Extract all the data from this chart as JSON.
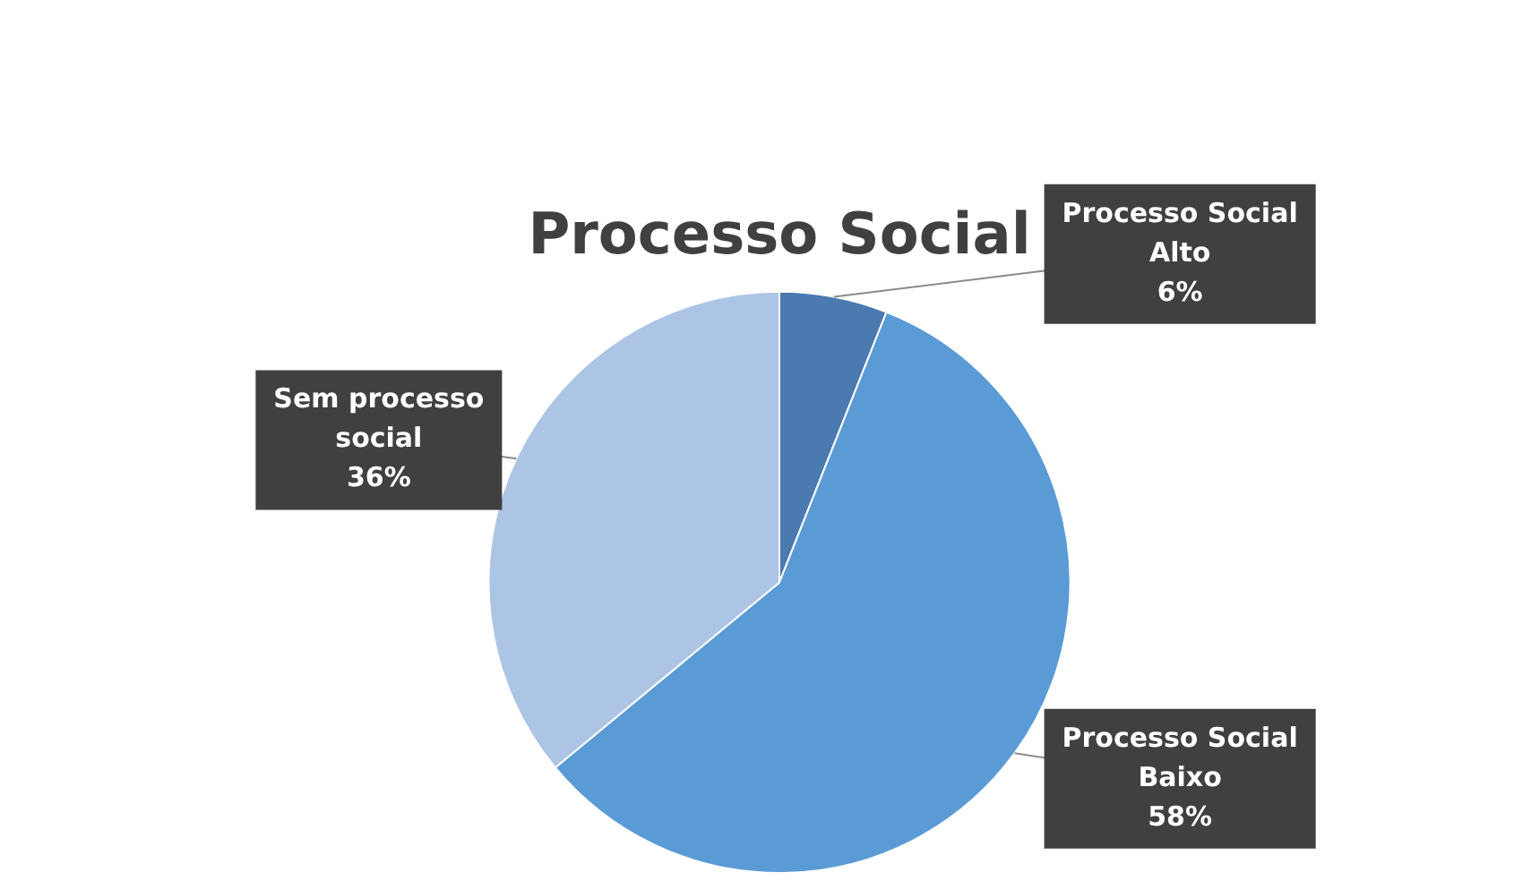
{
  "chart_data": {
    "type": "pie",
    "title": "Processo Social",
    "categories": [
      "Processo Social Alto",
      "Processo Social Baixo",
      "Sem processo social"
    ],
    "values": [
      6,
      58,
      36
    ],
    "colors": [
      "#4a7ab0",
      "#5b9bd5",
      "#adc5e5"
    ],
    "value_labels": [
      "6%",
      "58%",
      "36%"
    ],
    "legend": false
  }
}
